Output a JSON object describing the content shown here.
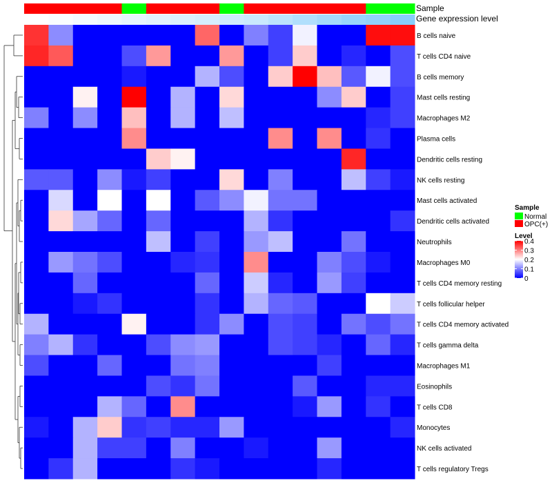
{
  "chart_data": {
    "type": "heatmap",
    "title": "",
    "annotation_labels": [
      "Sample",
      "Gene expression level"
    ],
    "sample_groups": [
      "OPC",
      "OPC",
      "OPC",
      "OPC",
      "Normal",
      "OPC",
      "OPC",
      "OPC",
      "Normal",
      "OPC",
      "OPC",
      "OPC",
      "OPC",
      "OPC",
      "Normal",
      "Normal"
    ],
    "gene_expression_level": [
      0.0,
      0.05,
      0.1,
      0.15,
      0.2,
      0.25,
      0.3,
      0.35,
      0.4,
      0.45,
      0.55,
      0.65,
      0.75,
      0.85,
      0.92,
      1.0
    ],
    "rows": [
      "B cells naive",
      "T cells CD4 naive",
      "B cells memory",
      "Mast cells resting",
      "Macrophages M2",
      "Plasma cells",
      "Dendritic cells resting",
      "NK cells resting",
      "Mast cells activated",
      "Dendritic cells activated",
      "Neutrophils",
      "Macrophages M0",
      "T cells CD4 memory resting",
      "T cells follicular helper",
      "T cells CD4 memory activated",
      "T cells gamma delta",
      "Macrophages M1",
      "Eosinophils",
      "T cells CD8",
      "Monocytes",
      "NK cells activated",
      "T cells regulatory  Tregs"
    ],
    "values": [
      [
        0.36,
        0.11,
        0,
        0,
        0,
        0,
        0,
        0.32,
        0,
        0.1,
        0.05,
        0.19,
        0,
        0,
        0.39,
        0.39
      ],
      [
        0.37,
        0.33,
        0,
        0,
        0.06,
        0.28,
        0,
        0,
        0.28,
        0,
        0.05,
        0.24,
        0,
        0.03,
        0,
        0.06
      ],
      [
        0,
        0,
        0,
        0,
        0.02,
        0,
        0,
        0.14,
        0.06,
        0,
        0.24,
        0.4,
        0.25,
        0.07,
        0.19,
        0.06
      ],
      [
        0,
        0,
        0.21,
        0,
        0.4,
        0,
        0.14,
        0,
        0.23,
        0,
        0,
        0,
        0.11,
        0.24,
        0,
        0.05
      ],
      [
        0.1,
        0,
        0.11,
        0,
        0.25,
        0,
        0.14,
        0,
        0.15,
        0,
        0,
        0,
        0,
        0,
        0.03,
        0.05
      ],
      [
        0,
        0,
        0,
        0,
        0.29,
        0,
        0,
        0,
        0,
        0,
        0.29,
        0,
        0.29,
        0,
        0.04,
        0
      ],
      [
        0,
        0,
        0,
        0,
        0,
        0.24,
        0.21,
        0,
        0,
        0,
        0,
        0,
        0,
        0.37,
        0,
        0
      ],
      [
        0.07,
        0.07,
        0,
        0.11,
        0.02,
        0.05,
        0,
        0,
        0.23,
        0,
        0.1,
        0,
        0,
        0.15,
        0.05,
        0.02
      ],
      [
        0,
        0.17,
        0,
        0.2,
        0,
        0.2,
        0,
        0.07,
        0.11,
        0.19,
        0.09,
        0.09,
        0,
        0,
        0,
        0
      ],
      [
        0,
        0.23,
        0.13,
        0.08,
        0,
        0.08,
        0,
        0,
        0,
        0.14,
        0.04,
        0,
        0,
        0,
        0,
        0.04
      ],
      [
        0,
        0,
        0,
        0,
        0,
        0.15,
        0,
        0.05,
        0,
        0.12,
        0.15,
        0,
        0,
        0.09,
        0,
        0
      ],
      [
        0,
        0.12,
        0.09,
        0.06,
        0,
        0,
        0.03,
        0.04,
        0,
        0.29,
        0,
        0,
        0.1,
        0.06,
        0.02,
        0
      ],
      [
        0,
        0,
        0.08,
        0,
        0,
        0,
        0,
        0.08,
        0,
        0.16,
        0.03,
        0,
        0.12,
        0.05,
        0,
        0
      ],
      [
        0,
        0,
        0.02,
        0.04,
        0,
        0,
        0,
        0.04,
        0,
        0.14,
        0.08,
        0.07,
        0,
        0,
        0.2,
        0.16
      ],
      [
        0.14,
        0,
        0,
        0,
        0.21,
        0,
        0,
        0.04,
        0.11,
        0,
        0.06,
        0.05,
        0,
        0.09,
        0.06,
        0.09
      ],
      [
        0.1,
        0.14,
        0.04,
        0,
        0,
        0.06,
        0.11,
        0.12,
        0,
        0,
        0.06,
        0.05,
        0.03,
        0,
        0.08,
        0.03
      ],
      [
        0.06,
        0,
        0,
        0.08,
        0,
        0,
        0.09,
        0.1,
        0,
        0,
        0,
        0,
        0.05,
        0,
        0,
        0
      ],
      [
        0,
        0,
        0,
        0,
        0,
        0.06,
        0.04,
        0.09,
        0,
        0,
        0,
        0.07,
        0,
        0,
        0.03,
        0.03
      ],
      [
        0,
        0,
        0,
        0.14,
        0.08,
        0,
        0.29,
        0,
        0,
        0,
        0,
        0.02,
        0.12,
        0,
        0.04,
        0
      ],
      [
        0.02,
        0,
        0.14,
        0.24,
        0.04,
        0.05,
        0.03,
        0.03,
        0.12,
        0,
        0,
        0,
        0,
        0,
        0,
        0.03
      ],
      [
        0,
        0,
        0.14,
        0.05,
        0.05,
        0,
        0.1,
        0,
        0,
        0.02,
        0,
        0,
        0.12,
        0,
        0,
        0
      ],
      [
        0,
        0.04,
        0.14,
        0,
        0,
        0,
        0.04,
        0.02,
        0,
        0,
        0,
        0,
        0.03,
        0,
        0,
        0
      ]
    ],
    "legend": {
      "sample": {
        "title": "Sample",
        "entries": [
          {
            "label": "Normal",
            "color": "#00ff00"
          },
          {
            "label": "OPC(+)",
            "color": "#ff0000"
          }
        ]
      },
      "level": {
        "title": "Level",
        "ticks": [
          {
            "value": 0.4,
            "label": "0.4"
          },
          {
            "value": 0.3,
            "label": "0.3"
          },
          {
            "value": 0.2,
            "label": "0.2"
          },
          {
            "value": 0.1,
            "label": "0.1"
          },
          {
            "value": 0.0,
            "label": "0"
          }
        ],
        "range": [
          0,
          0.4
        ]
      }
    },
    "colors": {
      "low": "#0000ff",
      "mid": "#ffffff",
      "high": "#ff0000",
      "mid_value": 0.2,
      "normal": "#00ff00",
      "opc": "#ff0000",
      "gel_low": "#ffffff",
      "gel_high": "#87cefa"
    }
  }
}
